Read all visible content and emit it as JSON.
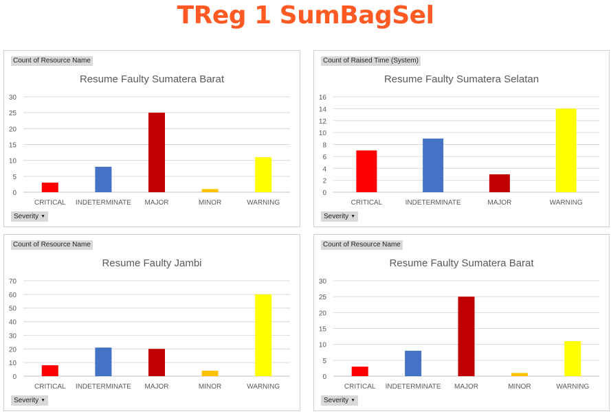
{
  "header": {
    "title": "TReg 1 SumBagSel"
  },
  "panels": [
    {
      "field_label": "Count of Resource Name",
      "filter_label": "Severity",
      "chart_data": {
        "type": "bar",
        "title": "Resume Faulty Sumatera Barat",
        "categories": [
          "CRITICAL",
          "INDETERMINATE",
          "MAJOR",
          "MINOR",
          "WARNING"
        ],
        "values": [
          3,
          8,
          25,
          1,
          11
        ],
        "colors": [
          "#ff0000",
          "#4472c4",
          "#c00000",
          "#ffc000",
          "#ffff00"
        ],
        "ylim": [
          0,
          30
        ],
        "yticks": [
          0,
          5,
          10,
          15,
          20,
          25,
          30
        ],
        "grid": true
      }
    },
    {
      "field_label": "Count of Raised Time  (System)",
      "filter_label": "Severity",
      "chart_data": {
        "type": "bar",
        "title": "Resume Faulty Sumatera Selatan",
        "categories": [
          "CRITICAL",
          "INDETERMINATE",
          "MAJOR",
          "WARNING"
        ],
        "values": [
          7,
          9,
          3,
          14
        ],
        "colors": [
          "#ff0000",
          "#4472c4",
          "#c00000",
          "#ffff00"
        ],
        "ylim": [
          0,
          16
        ],
        "yticks": [
          0,
          2,
          4,
          6,
          8,
          10,
          12,
          14,
          16
        ],
        "grid": true
      }
    },
    {
      "field_label": "Count of Resource Name",
      "filter_label": "Severity",
      "chart_data": {
        "type": "bar",
        "title": "Resume Faulty Jambi",
        "categories": [
          "CRITICAL",
          "INDETERMINATE",
          "MAJOR",
          "MINOR",
          "WARNING"
        ],
        "values": [
          8,
          21,
          20,
          4,
          60
        ],
        "colors": [
          "#ff0000",
          "#4472c4",
          "#c00000",
          "#ffc000",
          "#ffff00"
        ],
        "ylim": [
          0,
          70
        ],
        "yticks": [
          0,
          10,
          20,
          30,
          40,
          50,
          60,
          70
        ],
        "grid": true
      }
    },
    {
      "field_label": "Count of Resource Name",
      "filter_label": "Severity",
      "chart_data": {
        "type": "bar",
        "title": "Resume Faulty Sumatera Barat",
        "categories": [
          "CRITICAL",
          "INDETERMINATE",
          "MAJOR",
          "MINOR",
          "WARNING"
        ],
        "values": [
          3,
          8,
          25,
          1,
          11
        ],
        "colors": [
          "#ff0000",
          "#4472c4",
          "#c00000",
          "#ffc000",
          "#ffff00"
        ],
        "ylim": [
          0,
          30
        ],
        "yticks": [
          0,
          5,
          10,
          15,
          20,
          25,
          30
        ],
        "grid": true
      }
    }
  ]
}
